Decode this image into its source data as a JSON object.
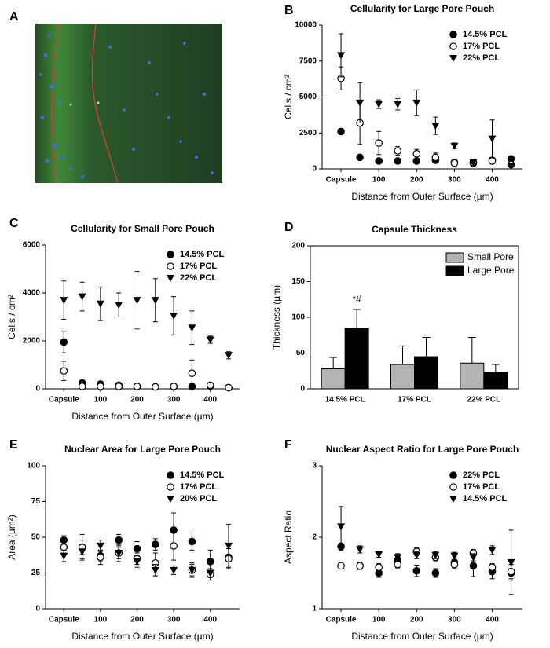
{
  "chart_data": [
    {
      "type": "image",
      "panel": "A"
    },
    {
      "type": "scatter",
      "panel": "B",
      "title": "Cellularity for Large Pore Pouch",
      "xlabel": "Distance from Outer Surface (µm)",
      "ylabel": "Cells / cm²",
      "x": [
        0,
        50,
        100,
        150,
        200,
        250,
        300,
        350,
        400,
        450
      ],
      "xlim": [
        -50,
        480
      ],
      "xticks": [
        {
          "value": 0,
          "label": "Capsule"
        },
        100,
        200,
        300,
        400
      ],
      "ylim": [
        0,
        10000
      ],
      "yticks": [
        0,
        2500,
        5000,
        7500,
        10000
      ],
      "legend": "upper right",
      "series": [
        {
          "name": "14.5% PCL",
          "color": "#000000",
          "marker": "circle-filled",
          "values": [
            2600,
            800,
            550,
            550,
            550,
            600,
            450,
            400,
            600,
            700
          ],
          "errors": [
            150,
            100,
            80,
            80,
            80,
            80,
            60,
            60,
            80,
            100
          ]
        },
        {
          "name": "17% PCL",
          "color": "#000000",
          "marker": "circle-open",
          "values": [
            6300,
            3200,
            1800,
            1250,
            1050,
            800,
            400,
            450,
            550,
            300
          ],
          "errors": [
            800,
            1500,
            800,
            300,
            300,
            300,
            100,
            100,
            200,
            100
          ]
        },
        {
          "name": "22% PCL",
          "color": "#000000",
          "marker": "triangle-down",
          "values": [
            7900,
            4600,
            4500,
            4500,
            4600,
            3000,
            1600,
            450,
            2100,
            200
          ],
          "errors": [
            1500,
            1400,
            300,
            400,
            900,
            600,
            200,
            100,
            1300,
            200
          ]
        }
      ]
    },
    {
      "type": "scatter",
      "panel": "C",
      "title": "Cellularity for Small Pore Pouch",
      "xlabel": "Distance from Outer Surface (µm)",
      "ylabel": "Cells / cm²",
      "x": [
        0,
        50,
        100,
        150,
        200,
        250,
        300,
        350,
        400,
        450
      ],
      "xlim": [
        -50,
        480
      ],
      "xticks": [
        {
          "value": 0,
          "label": "Capsule"
        },
        100,
        200,
        300,
        400
      ],
      "ylim": [
        0,
        6000
      ],
      "yticks": [
        0,
        2000,
        4000,
        6000
      ],
      "legend": "upper right",
      "series": [
        {
          "name": "14.5% PCL",
          "color": "#000000",
          "marker": "circle-filled",
          "values": [
            1950,
            250,
            200,
            150,
            100,
            80,
            100,
            100,
            120,
            50
          ],
          "errors": [
            450,
            60,
            50,
            50,
            40,
            30,
            40,
            40,
            40,
            20
          ]
        },
        {
          "name": "17% PCL",
          "color": "#000000",
          "marker": "circle-open",
          "values": [
            750,
            100,
            100,
            100,
            100,
            80,
            100,
            650,
            150,
            50
          ],
          "errors": [
            400,
            60,
            50,
            50,
            50,
            40,
            50,
            550,
            80,
            30
          ]
        },
        {
          "name": "22% PCL",
          "color": "#000000",
          "marker": "triangle-down",
          "values": [
            3700,
            3850,
            3550,
            3500,
            3700,
            3700,
            3050,
            2550,
            2050,
            1400
          ],
          "errors": [
            800,
            600,
            700,
            500,
            1200,
            900,
            800,
            700,
            150,
            150
          ]
        }
      ]
    },
    {
      "type": "bar",
      "panel": "D",
      "title": "Capsule Thickness",
      "ylabel": "Thickness (µm)",
      "categories": [
        "14.5% PCL",
        "17% PCL",
        "22% PCL"
      ],
      "ylim": [
        0,
        200
      ],
      "yticks": [
        0,
        50,
        100,
        150,
        200
      ],
      "legend": "upper right",
      "annotation": "*#",
      "series": [
        {
          "name": "Small Pore",
          "color": "#b4b4b4",
          "values": [
            28,
            34,
            36
          ],
          "errors": [
            16,
            26,
            36
          ]
        },
        {
          "name": "Large Pore",
          "color": "#000000",
          "values": [
            85,
            45,
            23
          ],
          "errors": [
            26,
            27,
            11
          ]
        }
      ]
    },
    {
      "type": "scatter",
      "panel": "E",
      "title": "Nuclear Area for Large Pore Pouch",
      "xlabel": "Distance from Outer Surface (µm)",
      "ylabel": "Area (µm²)",
      "x": [
        0,
        50,
        100,
        150,
        200,
        250,
        300,
        350,
        400,
        450
      ],
      "xlim": [
        -50,
        480
      ],
      "xticks": [
        {
          "value": 0,
          "label": "Capsule"
        },
        100,
        200,
        300,
        400
      ],
      "ylim": [
        0,
        100
      ],
      "yticks": [
        0,
        25,
        50,
        75,
        100
      ],
      "legend": "upper right",
      "series": [
        {
          "name": "14.5% PCL",
          "color": "#000000",
          "marker": "circle-filled",
          "values": [
            48,
            43,
            37,
            48,
            42,
            45,
            55,
            47,
            33,
            36
          ],
          "errors": [
            3,
            5,
            4,
            4,
            5,
            4,
            12,
            6,
            8,
            6
          ]
        },
        {
          "name": "17% PCL",
          "color": "#000000",
          "marker": "circle-open",
          "values": [
            43,
            43,
            36,
            39,
            35,
            32,
            44,
            27,
            24,
            35
          ],
          "errors": [
            5,
            9,
            5,
            6,
            4,
            7,
            10,
            5,
            4,
            7
          ]
        },
        {
          "name": "20% PCL",
          "color": "#000000",
          "marker": "triangle-down",
          "values": [
            37,
            40,
            44,
            39,
            33,
            27,
            27,
            27,
            25,
            44
          ],
          "errors": [
            4,
            5,
            4,
            4,
            4,
            4,
            3,
            4,
            3,
            15
          ]
        }
      ]
    },
    {
      "type": "scatter",
      "panel": "F",
      "title": "Nuclear Aspect Ratio for Large Pore Pouch",
      "xlabel": "Distance from Outer Surface (µm)",
      "ylabel": "Aspect Ratio",
      "x": [
        0,
        50,
        100,
        150,
        200,
        250,
        300,
        350,
        400,
        450
      ],
      "xlim": [
        -50,
        480
      ],
      "xticks": [
        {
          "value": 0,
          "label": "Capsule"
        },
        100,
        200,
        300,
        400
      ],
      "ylim": [
        1,
        3
      ],
      "yticks": [
        1,
        2,
        3
      ],
      "legend": "upper right",
      "series": [
        {
          "name": "22% PCL",
          "color": "#000000",
          "marker": "circle-filled",
          "values": [
            1.87,
            1.6,
            1.5,
            1.68,
            1.53,
            1.5,
            1.65,
            1.6,
            1.52,
            1.5
          ],
          "errors": [
            0.05,
            0.05,
            0.06,
            0.08,
            0.08,
            0.06,
            0.08,
            0.15,
            0.1,
            0.1
          ]
        },
        {
          "name": "17% PCL",
          "color": "#000000",
          "marker": "circle-open",
          "values": [
            1.6,
            1.6,
            1.58,
            1.62,
            1.8,
            1.72,
            1.62,
            1.78,
            1.58,
            1.52
          ],
          "errors": [
            0.03,
            0.05,
            0.05,
            0.05,
            0.05,
            0.05,
            0.05,
            0.05,
            0.05,
            0.1
          ]
        },
        {
          "name": "14.5% PCL",
          "color": "#000000",
          "marker": "triangle-down",
          "values": [
            2.15,
            1.83,
            1.76,
            1.72,
            1.75,
            1.75,
            1.74,
            1.72,
            1.82,
            1.65
          ],
          "errors": [
            0.28,
            0.05,
            0.04,
            0.05,
            0.05,
            0.05,
            0.05,
            0.05,
            0.06,
            0.45
          ]
        }
      ]
    }
  ]
}
